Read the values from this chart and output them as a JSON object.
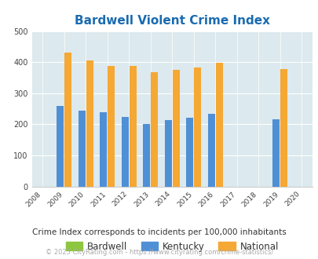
{
  "title": "Bardwell Violent Crime Index",
  "years": [
    2008,
    2009,
    2010,
    2011,
    2012,
    2013,
    2014,
    2015,
    2016,
    2017,
    2018,
    2019,
    2020
  ],
  "bardwell": [
    0,
    0,
    0,
    0,
    0,
    0,
    0,
    0,
    0,
    0,
    0,
    0,
    0
  ],
  "kentucky": [
    0,
    260,
    245,
    240,
    223,
    202,
    214,
    220,
    234,
    0,
    0,
    217,
    0
  ],
  "national": [
    0,
    430,
    405,
    388,
    387,
    367,
    376,
    383,
    397,
    0,
    0,
    379,
    0
  ],
  "bar_width": 0.32,
  "xlim": [
    2007.5,
    2020.5
  ],
  "ylim": [
    0,
    500
  ],
  "yticks": [
    0,
    100,
    200,
    300,
    400,
    500
  ],
  "xticks": [
    2008,
    2009,
    2010,
    2011,
    2012,
    2013,
    2014,
    2015,
    2016,
    2017,
    2018,
    2019,
    2020
  ],
  "bardwell_color": "#8dc63f",
  "kentucky_color": "#4f8fd6",
  "national_color": "#f5a833",
  "bg_color": "#dce9ee",
  "title_color": "#1a6bb0",
  "legend_text_color": "#333333",
  "subtitle": "Crime Index corresponds to incidents per 100,000 inhabitants",
  "footer": "© 2025 CityRating.com - https://www.cityrating.com/crime-statistics/",
  "subtitle_color": "#333333",
  "footer_color": "#aaaaaa"
}
